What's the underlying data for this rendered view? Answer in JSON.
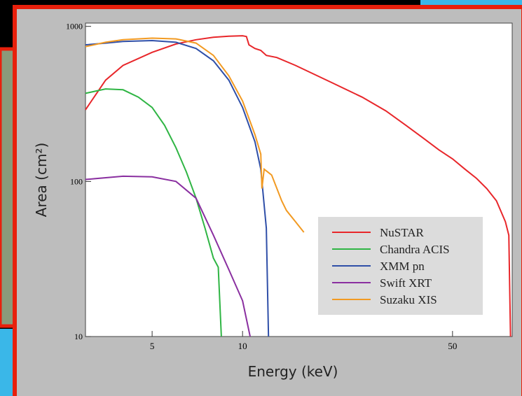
{
  "chart_data": {
    "type": "line",
    "x_label": "Energy (keV)",
    "y_label": "Area (cm²)",
    "log_x": true,
    "log_y": true,
    "xlim": [
      3,
      79
    ],
    "ylim": [
      10,
      1050
    ],
    "xticks": [
      5,
      10,
      50
    ],
    "yticks": [
      10,
      100,
      1000
    ],
    "legend_loc": "lower right",
    "series": [
      {
        "name": "NuSTAR",
        "color": "#e8262a",
        "x": [
          3,
          3.5,
          4,
          5,
          6,
          7,
          8,
          9,
          10,
          10.3,
          10.5,
          11,
          11.5,
          12,
          13,
          15,
          20,
          25,
          30,
          35,
          40,
          45,
          50,
          55,
          60,
          65,
          70,
          75,
          77,
          78
        ],
        "values": [
          290,
          450,
          560,
          680,
          770,
          820,
          850,
          865,
          870,
          860,
          760,
          720,
          700,
          650,
          630,
          560,
          430,
          350,
          285,
          230,
          190,
          160,
          140,
          120,
          105,
          90,
          75,
          55,
          45,
          10
        ]
      },
      {
        "name": "Chandra ACIS",
        "color": "#2fb544",
        "x": [
          3,
          3.5,
          4,
          4.5,
          5,
          5.5,
          6,
          6.5,
          7,
          7.5,
          8,
          8.3,
          8.5
        ],
        "values": [
          370,
          395,
          390,
          350,
          300,
          230,
          165,
          115,
          78,
          50,
          32,
          28,
          10
        ]
      },
      {
        "name": "XMM pn",
        "color": "#2f4fa8",
        "x": [
          3,
          3.5,
          4,
          5,
          6,
          7,
          8,
          9,
          10,
          11,
          11.5,
          12,
          12.2
        ],
        "values": [
          760,
          780,
          800,
          810,
          790,
          720,
          600,
          450,
          300,
          180,
          120,
          50,
          10
        ]
      },
      {
        "name": "Swift XRT",
        "color": "#8a2fa0",
        "x": [
          3,
          4,
          5,
          6,
          7,
          8,
          9,
          10,
          10.6
        ],
        "values": [
          103,
          108,
          107,
          100,
          78,
          45,
          27,
          17,
          10
        ]
      },
      {
        "name": "Suzaku XIS",
        "color": "#f29a22",
        "x": [
          3,
          3.5,
          4,
          5,
          6,
          7,
          8,
          9,
          10,
          11,
          11.5,
          11.6,
          11.8,
          12.5,
          13.5,
          14,
          15,
          16
        ],
        "values": [
          740,
          790,
          820,
          840,
          830,
          780,
          650,
          480,
          330,
          200,
          150,
          90,
          120,
          110,
          75,
          65,
          55,
          47
        ]
      }
    ]
  }
}
